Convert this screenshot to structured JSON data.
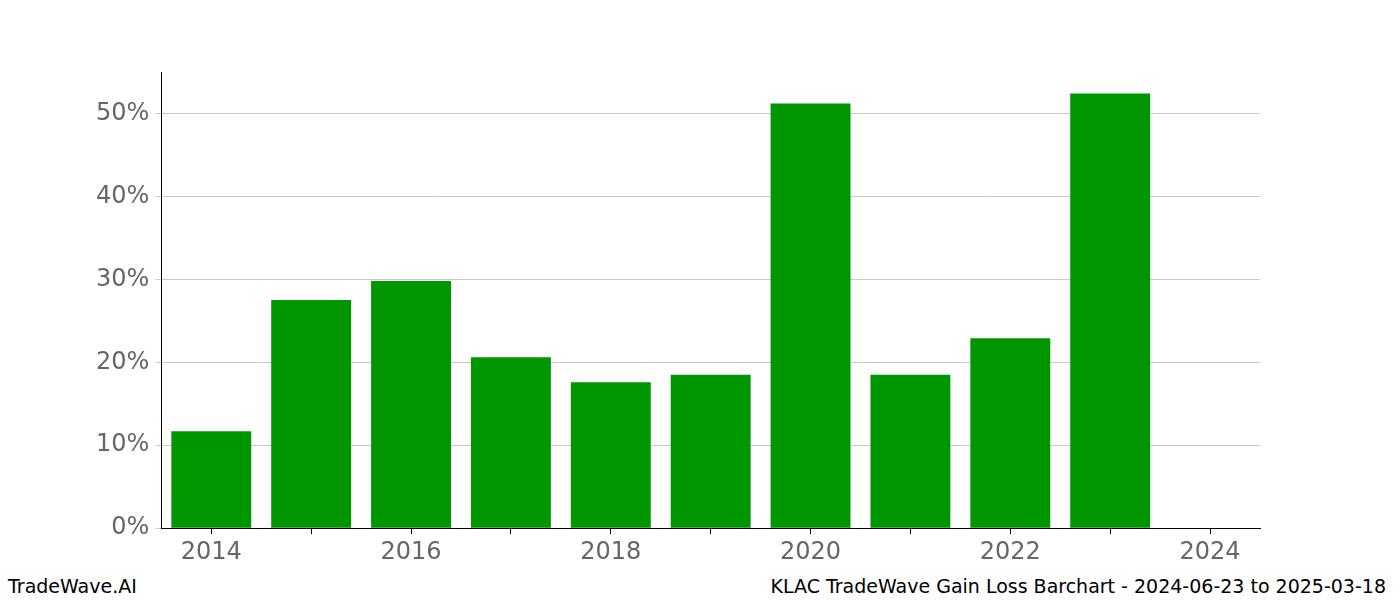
{
  "chart_data": {
    "type": "bar",
    "annotations": [
      "TradeWave.AI",
      "KLAC TradeWave Gain Loss Barchart - 2024-06-23 to 2025-03-18"
    ],
    "categories": [
      "2014",
      null,
      "2016",
      null,
      "2018",
      null,
      "2020",
      null,
      "2022",
      null,
      "2024"
    ],
    "values": [
      11.7,
      27.5,
      29.8,
      20.6,
      17.6,
      18.5,
      51.2,
      18.5,
      22.9,
      52.4,
      null
    ],
    "color": "#009600",
    "ylim": [
      0,
      55
    ],
    "yticks": [
      {
        "value": 0,
        "label": "0%"
      },
      {
        "value": 10,
        "label": "10%"
      },
      {
        "value": 20,
        "label": "20%"
      },
      {
        "value": 30,
        "label": "30%"
      },
      {
        "value": 40,
        "label": "40%"
      },
      {
        "value": 50,
        "label": "50%"
      }
    ],
    "grid": true
  }
}
